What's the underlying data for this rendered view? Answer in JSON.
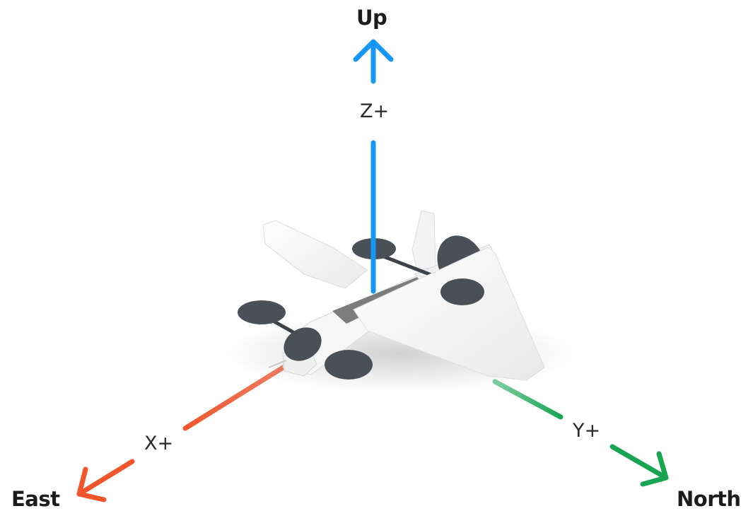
{
  "directions": {
    "up": "Up",
    "east": "East",
    "north": "North"
  },
  "axes": {
    "z": "Z+",
    "x": "X+",
    "y": "Y+"
  },
  "colors": {
    "z_axis": "#1597f3",
    "x_axis": "#f0552c",
    "y_axis": "#17a552",
    "aircraft_body": "#f4f4f4",
    "rotor": "#4a5058",
    "fuselage_stripe": "#7d7d7d"
  },
  "image": {
    "subject": "vtol-aircraft-icon"
  }
}
